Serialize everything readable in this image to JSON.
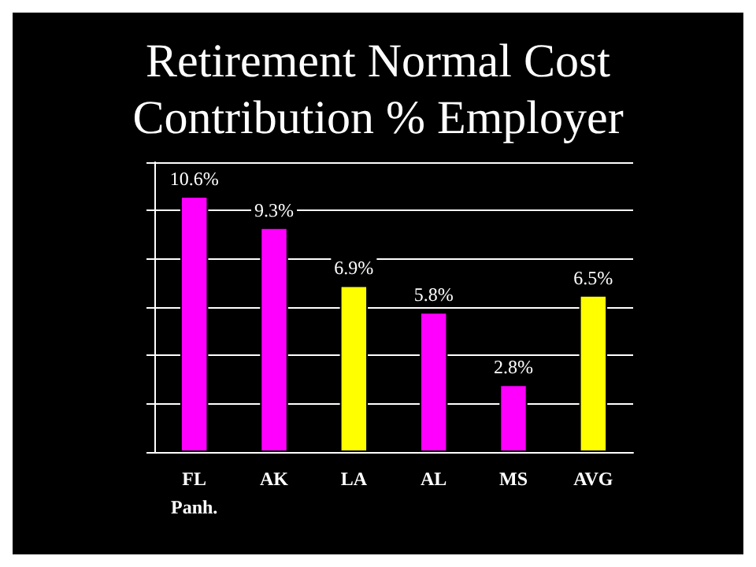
{
  "chart_data": {
    "type": "bar",
    "title": "Retirement Normal Cost\nContribution % Employer",
    "categories": [
      "FL\nPanh.",
      "AK",
      "LA",
      "AL",
      "MS",
      "AVG"
    ],
    "values": [
      10.6,
      9.3,
      6.9,
      5.8,
      2.8,
      6.5
    ],
    "colors": [
      "#ff00ff",
      "#ff00ff",
      "#ffff00",
      "#ff00ff",
      "#ff00ff",
      "#ffff00"
    ],
    "value_labels": [
      "10.6%",
      "9.3%",
      "6.9%",
      "5.8%",
      "2.8%",
      "6.5%"
    ],
    "ylim": [
      0,
      12
    ],
    "yticks": [
      {
        "value": 0,
        "label": null
      },
      {
        "value": 2,
        "label": null
      },
      {
        "value": 4,
        "label": null
      },
      {
        "value": 6,
        "label": null
      },
      {
        "value": 8,
        "label": null
      },
      {
        "value": 10,
        "label": null
      },
      {
        "value": 12,
        "label": null
      }
    ],
    "grid": "y"
  }
}
